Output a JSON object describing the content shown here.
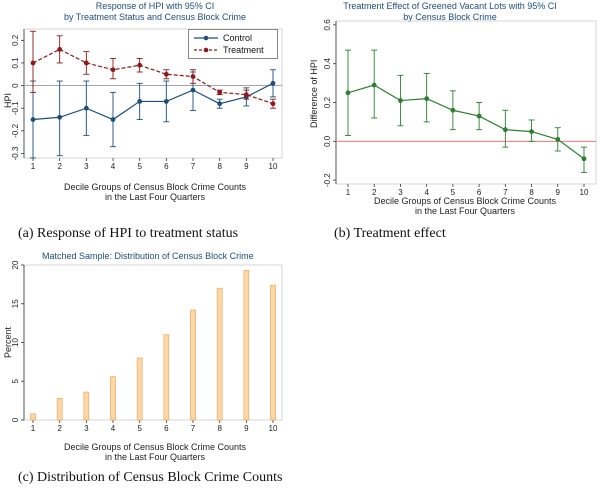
{
  "panels": {
    "a": {
      "title_lines": [
        "Response of HPI with 95% CI",
        "by Treatment Status and Census Block Crime"
      ],
      "caption": "(a)  Response of HPI to treatment status"
    },
    "b": {
      "title_lines": [
        "Treatment Effect of Greened Vacant Lots with 95% CI",
        "by Census Block Crime"
      ],
      "caption": "(b)  Treatment effect"
    },
    "c": {
      "title_lines": [
        "Matched Sample:  Distribution of Census Block Crime"
      ],
      "caption": "(c)  Distribution of Census Block Crime Counts"
    }
  },
  "chart_data": [
    {
      "id": "a",
      "type": "line",
      "title": "Response of HPI with 95% CI by Treatment Status and Census Block Crime",
      "xlabel": "Decile Groups of Census Block Crime Counts in the Last Four Quarters",
      "xlabel_lines": [
        "Decile Groups of Census Block Crime Counts",
        "in the Last Four Quarters"
      ],
      "ylabel": "HPI",
      "x": [
        1,
        2,
        3,
        4,
        5,
        6,
        7,
        8,
        9,
        10
      ],
      "xlim": [
        1,
        10
      ],
      "ylim": [
        -0.32,
        0.25
      ],
      "yticks": [
        -0.3,
        -0.2,
        -0.1,
        0,
        0.1,
        0.2
      ],
      "ytick_labels": [
        "-0.3",
        "-0.2",
        "-0.1",
        "0",
        "0.1",
        "0.2"
      ],
      "reference_line": 0,
      "legend_position": "top-right",
      "series": [
        {
          "name": "Control",
          "color": "#1f4e79",
          "style": "solid",
          "values": [
            -0.15,
            -0.14,
            -0.1,
            -0.15,
            -0.07,
            -0.07,
            -0.02,
            -0.08,
            -0.05,
            0.01
          ],
          "ci_low": [
            -0.32,
            -0.31,
            -0.22,
            -0.27,
            -0.15,
            -0.16,
            -0.11,
            -0.1,
            -0.09,
            -0.05
          ],
          "ci_high": [
            0.02,
            0.02,
            0.02,
            -0.03,
            0.01,
            0.02,
            0.06,
            -0.06,
            -0.01,
            0.07
          ]
        },
        {
          "name": "Treatment",
          "color": "#8b1a1a",
          "style": "dashed",
          "values": [
            0.1,
            0.16,
            0.1,
            0.07,
            0.09,
            0.05,
            0.04,
            -0.03,
            -0.04,
            -0.08
          ],
          "ci_low": [
            -0.03,
            0.1,
            0.05,
            0.03,
            0.06,
            0.03,
            0.01,
            -0.04,
            -0.06,
            -0.1
          ],
          "ci_high": [
            0.24,
            0.22,
            0.15,
            0.12,
            0.12,
            0.07,
            0.07,
            -0.02,
            -0.02,
            -0.06
          ]
        }
      ]
    },
    {
      "id": "b",
      "type": "line",
      "title": "Treatment Effect of Greened Vacant Lots with 95% CI by Census Block Crime",
      "xlabel": "Decile Groups of Census Block Crime Counts in the Last Four Quarters",
      "xlabel_lines": [
        "Decile Groups of Census Block Crime Counts",
        "in the Last Four Quarters"
      ],
      "ylabel": "Difference of HPI",
      "x": [
        1,
        2,
        3,
        4,
        5,
        6,
        7,
        8,
        9,
        10
      ],
      "xlim": [
        1,
        10
      ],
      "ylim": [
        -0.22,
        0.62
      ],
      "yticks": [
        -0.2,
        0,
        0.2,
        0.4,
        0.6
      ],
      "ytick_labels": [
        "-0.2",
        "0.0",
        "0.2",
        "0.4",
        "0.6"
      ],
      "reference_line": 0,
      "series": [
        {
          "color": "#2e7d32",
          "style": "solid",
          "values": [
            0.25,
            0.29,
            0.21,
            0.22,
            0.16,
            0.13,
            0.06,
            0.05,
            0.01,
            -0.09
          ],
          "ci_low": [
            0.03,
            0.12,
            0.08,
            0.1,
            0.06,
            0.06,
            -0.03,
            0.0,
            -0.05,
            -0.16
          ],
          "ci_high": [
            0.47,
            0.47,
            0.34,
            0.35,
            0.26,
            0.2,
            0.16,
            0.11,
            0.07,
            -0.03
          ]
        }
      ]
    },
    {
      "id": "c",
      "type": "bar",
      "title": "Matched Sample:  Distribution of Census Block Crime",
      "xlabel": "Decile Groups of Census Block Crime Counts in the Last Four Quarters",
      "xlabel_lines": [
        "Decile Groups of Census Block Crime Counts",
        "in the Last Four Quarters"
      ],
      "ylabel": "Percent",
      "categories": [
        "1",
        "2",
        "3",
        "4",
        "5",
        "6",
        "7",
        "8",
        "9",
        "10"
      ],
      "values": [
        0.8,
        2.8,
        3.6,
        5.6,
        8.0,
        11.0,
        14.2,
        17.0,
        19.3,
        17.4
      ],
      "ylim": [
        0,
        20
      ],
      "yticks": [
        0,
        5,
        10,
        15,
        20
      ],
      "ytick_labels": [
        "0",
        "5",
        "10",
        "15",
        "20"
      ],
      "bar_fill": "#fcd8a8",
      "bar_stroke": "#f0a860"
    }
  ]
}
